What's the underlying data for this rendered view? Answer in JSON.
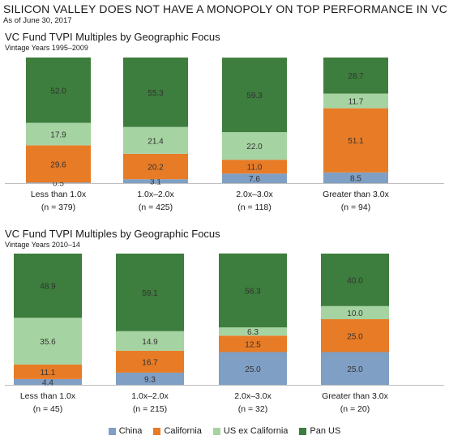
{
  "header": {
    "title": "SILICON VALLEY DOES NOT HAVE A MONOPOLY ON TOP PERFORMANCE IN VC",
    "as_of": "As of June 30, 2017"
  },
  "colors": {
    "China": "#7f9fc4",
    "California": "#e87b26",
    "US ex California": "#a6d3a2",
    "Pan US": "#3d7d3d"
  },
  "chart_data": [
    {
      "type": "bar",
      "stacked": true,
      "title": "VC Fund TVPI Multiples by Geographic Focus",
      "subtitle": "Vintage Years 1995–2009",
      "categories": [
        "Less than 1.0x",
        "1.0x–2.0x",
        "2.0x–3.0x",
        "Greater than 3.0x"
      ],
      "counts": [
        "(n = 379)",
        "(n = 425)",
        "(n = 118)",
        "(n = 94)"
      ],
      "ylim": [
        0,
        100
      ],
      "series": [
        {
          "name": "China",
          "values": [
            0.5,
            3.1,
            7.6,
            8.5
          ]
        },
        {
          "name": "California",
          "values": [
            29.6,
            20.2,
            11.0,
            51.1
          ]
        },
        {
          "name": "US ex California",
          "values": [
            17.9,
            21.4,
            22.0,
            11.7
          ]
        },
        {
          "name": "Pan US",
          "values": [
            52.0,
            55.3,
            59.3,
            28.7
          ]
        }
      ]
    },
    {
      "type": "bar",
      "stacked": true,
      "title": "VC Fund TVPI Multiples by Geographic Focus",
      "subtitle": "Vintage Years 2010–14",
      "categories": [
        "Less than 1.0x",
        "1.0x–2.0x",
        "2.0x–3.0x",
        "Greater than 3.0x"
      ],
      "counts": [
        "(n = 45)",
        "(n = 215)",
        "(n = 32)",
        "(n = 20)"
      ],
      "ylim": [
        0,
        100
      ],
      "series": [
        {
          "name": "China",
          "values": [
            4.4,
            9.3,
            25.0,
            25.0
          ]
        },
        {
          "name": "California",
          "values": [
            11.1,
            16.7,
            12.5,
            25.0
          ]
        },
        {
          "name": "US ex California",
          "values": [
            35.6,
            14.9,
            6.3,
            10.0
          ]
        },
        {
          "name": "Pan US",
          "values": [
            48.9,
            59.1,
            56.3,
            40.0
          ]
        }
      ]
    }
  ],
  "legend": [
    "China",
    "California",
    "US ex California",
    "Pan US"
  ]
}
